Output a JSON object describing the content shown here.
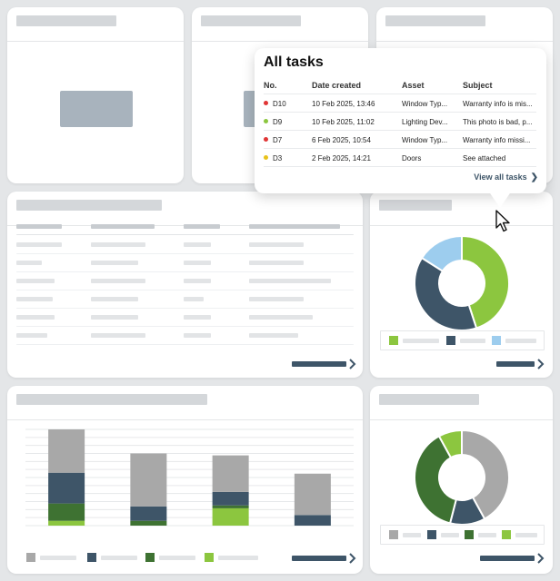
{
  "colors": {
    "green": "#8cc63f",
    "dark_green": "#3e7232",
    "navy": "#3e5568",
    "light_blue": "#9dcdee",
    "gray": "#a8a8a8",
    "red": "#e03535",
    "yellow": "#e8c21b",
    "placeholder": "#d4d7da"
  },
  "popup": {
    "title": "All tasks",
    "columns": [
      "No.",
      "Date created",
      "Asset",
      "Subject"
    ],
    "rows": [
      {
        "status_color": "#e03535",
        "no": "D10",
        "date": "10 Feb 2025, 13:46",
        "asset": "Window Typ...",
        "subject": "Warranty info is mis..."
      },
      {
        "status_color": "#8cc63f",
        "no": "D9",
        "date": "10 Feb 2025, 11:02",
        "asset": "Lighting Dev...",
        "subject": "This photo is bad, p..."
      },
      {
        "status_color": "#e03535",
        "no": "D7",
        "date": "6 Feb 2025, 10:54",
        "asset": "Window Typ...",
        "subject": "Warranty info missi..."
      },
      {
        "status_color": "#e8c21b",
        "no": "D3",
        "date": "2 Feb 2025, 14:21",
        "asset": "Doors",
        "subject": "See attached"
      }
    ],
    "view_all": "View all tasks"
  },
  "icons": {
    "cursor": "mouse-pointer-icon",
    "chevron": "chevron-right-icon"
  },
  "donut_top": {
    "slices": [
      {
        "color": "#8cc63f",
        "value": 45
      },
      {
        "color": "#3e5568",
        "value": 39
      },
      {
        "color": "#9dcdee",
        "value": 16
      }
    ]
  },
  "donut_bottom": {
    "slices": [
      {
        "color": "#a8a8a8",
        "value": 42
      },
      {
        "color": "#3e5568",
        "value": 12
      },
      {
        "color": "#3e7232",
        "value": 38
      },
      {
        "color": "#8cc63f",
        "value": 8
      }
    ]
  },
  "bar_chart": {
    "ylim": [
      0,
      100
    ],
    "bars": [
      {
        "segments": [
          {
            "color": "#8cc63f",
            "value": 5
          },
          {
            "color": "#3e7232",
            "value": 18
          },
          {
            "color": "#3e5568",
            "value": 32
          },
          {
            "color": "#a8a8a8",
            "value": 45
          }
        ]
      },
      {
        "segments": [
          {
            "color": "#3e7232",
            "value": 5
          },
          {
            "color": "#3e5568",
            "value": 15
          },
          {
            "color": "#a8a8a8",
            "value": 55
          }
        ]
      },
      {
        "segments": [
          {
            "color": "#8cc63f",
            "value": 18
          },
          {
            "color": "#3e7232",
            "value": 3
          },
          {
            "color": "#3e5568",
            "value": 14
          },
          {
            "color": "#a8a8a8",
            "value": 38
          }
        ]
      },
      {
        "segments": [
          {
            "color": "#3e5568",
            "value": 11
          },
          {
            "color": "#a8a8a8",
            "value": 43
          }
        ]
      }
    ]
  }
}
